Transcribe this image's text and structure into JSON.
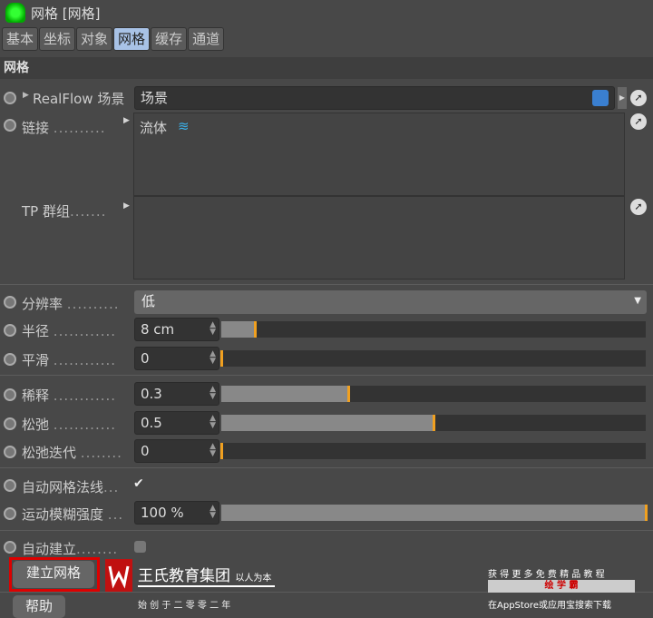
{
  "window": {
    "title": "网格 [网格]",
    "icon": "realflow-mesh-icon"
  },
  "tabs": [
    {
      "label": "基本"
    },
    {
      "label": "坐标"
    },
    {
      "label": "对象"
    },
    {
      "label": "网格",
      "active": true
    },
    {
      "label": "缓存"
    },
    {
      "label": "通道"
    }
  ],
  "section": "网格",
  "scene": {
    "label": "RealFlow 场景",
    "value": "场景"
  },
  "link": {
    "label": "链接",
    "dots": "..........",
    "items": [
      "流体"
    ]
  },
  "tp": {
    "label": "TP 群组",
    "dots": "......."
  },
  "resolution": {
    "label": "分辨率",
    "dots": "..........",
    "value": "低"
  },
  "radius": {
    "label": "半径",
    "dots": "............",
    "value": "8 cm",
    "fraction": 0.08
  },
  "smooth": {
    "label": "平滑",
    "dots": "............",
    "value": "0",
    "fraction": 0
  },
  "dilute": {
    "label": "稀释",
    "dots": "............",
    "value": "0.3",
    "fraction": 0.3
  },
  "relax": {
    "label": "松弛",
    "dots": "............",
    "value": "0.5",
    "fraction": 0.5
  },
  "relax_iter": {
    "label": "松弛迭代",
    "dots": "........",
    "value": "0",
    "fraction": 0
  },
  "auto_normals": {
    "label": "自动网格法线",
    "dots": "...",
    "checked": true
  },
  "motion_blur": {
    "label": "运动模糊强度",
    "dots": "...",
    "value": "100 %",
    "fraction": 1.0
  },
  "auto_build": {
    "label": "自动建立",
    "dots": "........",
    "checked": false
  },
  "buttons": {
    "build": "建立网格",
    "help": "帮助"
  },
  "watermark": {
    "org": "王氏教育集团",
    "motto": "以人为本",
    "since": "始 创 于 二 零 零 二 年",
    "promo1": "获 得 更 多 免 费 精 品 教 程",
    "brand": "绘 学 霸",
    "promo2": "在AppStore或应用宝搜索下载"
  },
  "colors": {
    "accent": "#f0a020",
    "active_tab": "#a8c2e6",
    "background": "#484848"
  }
}
